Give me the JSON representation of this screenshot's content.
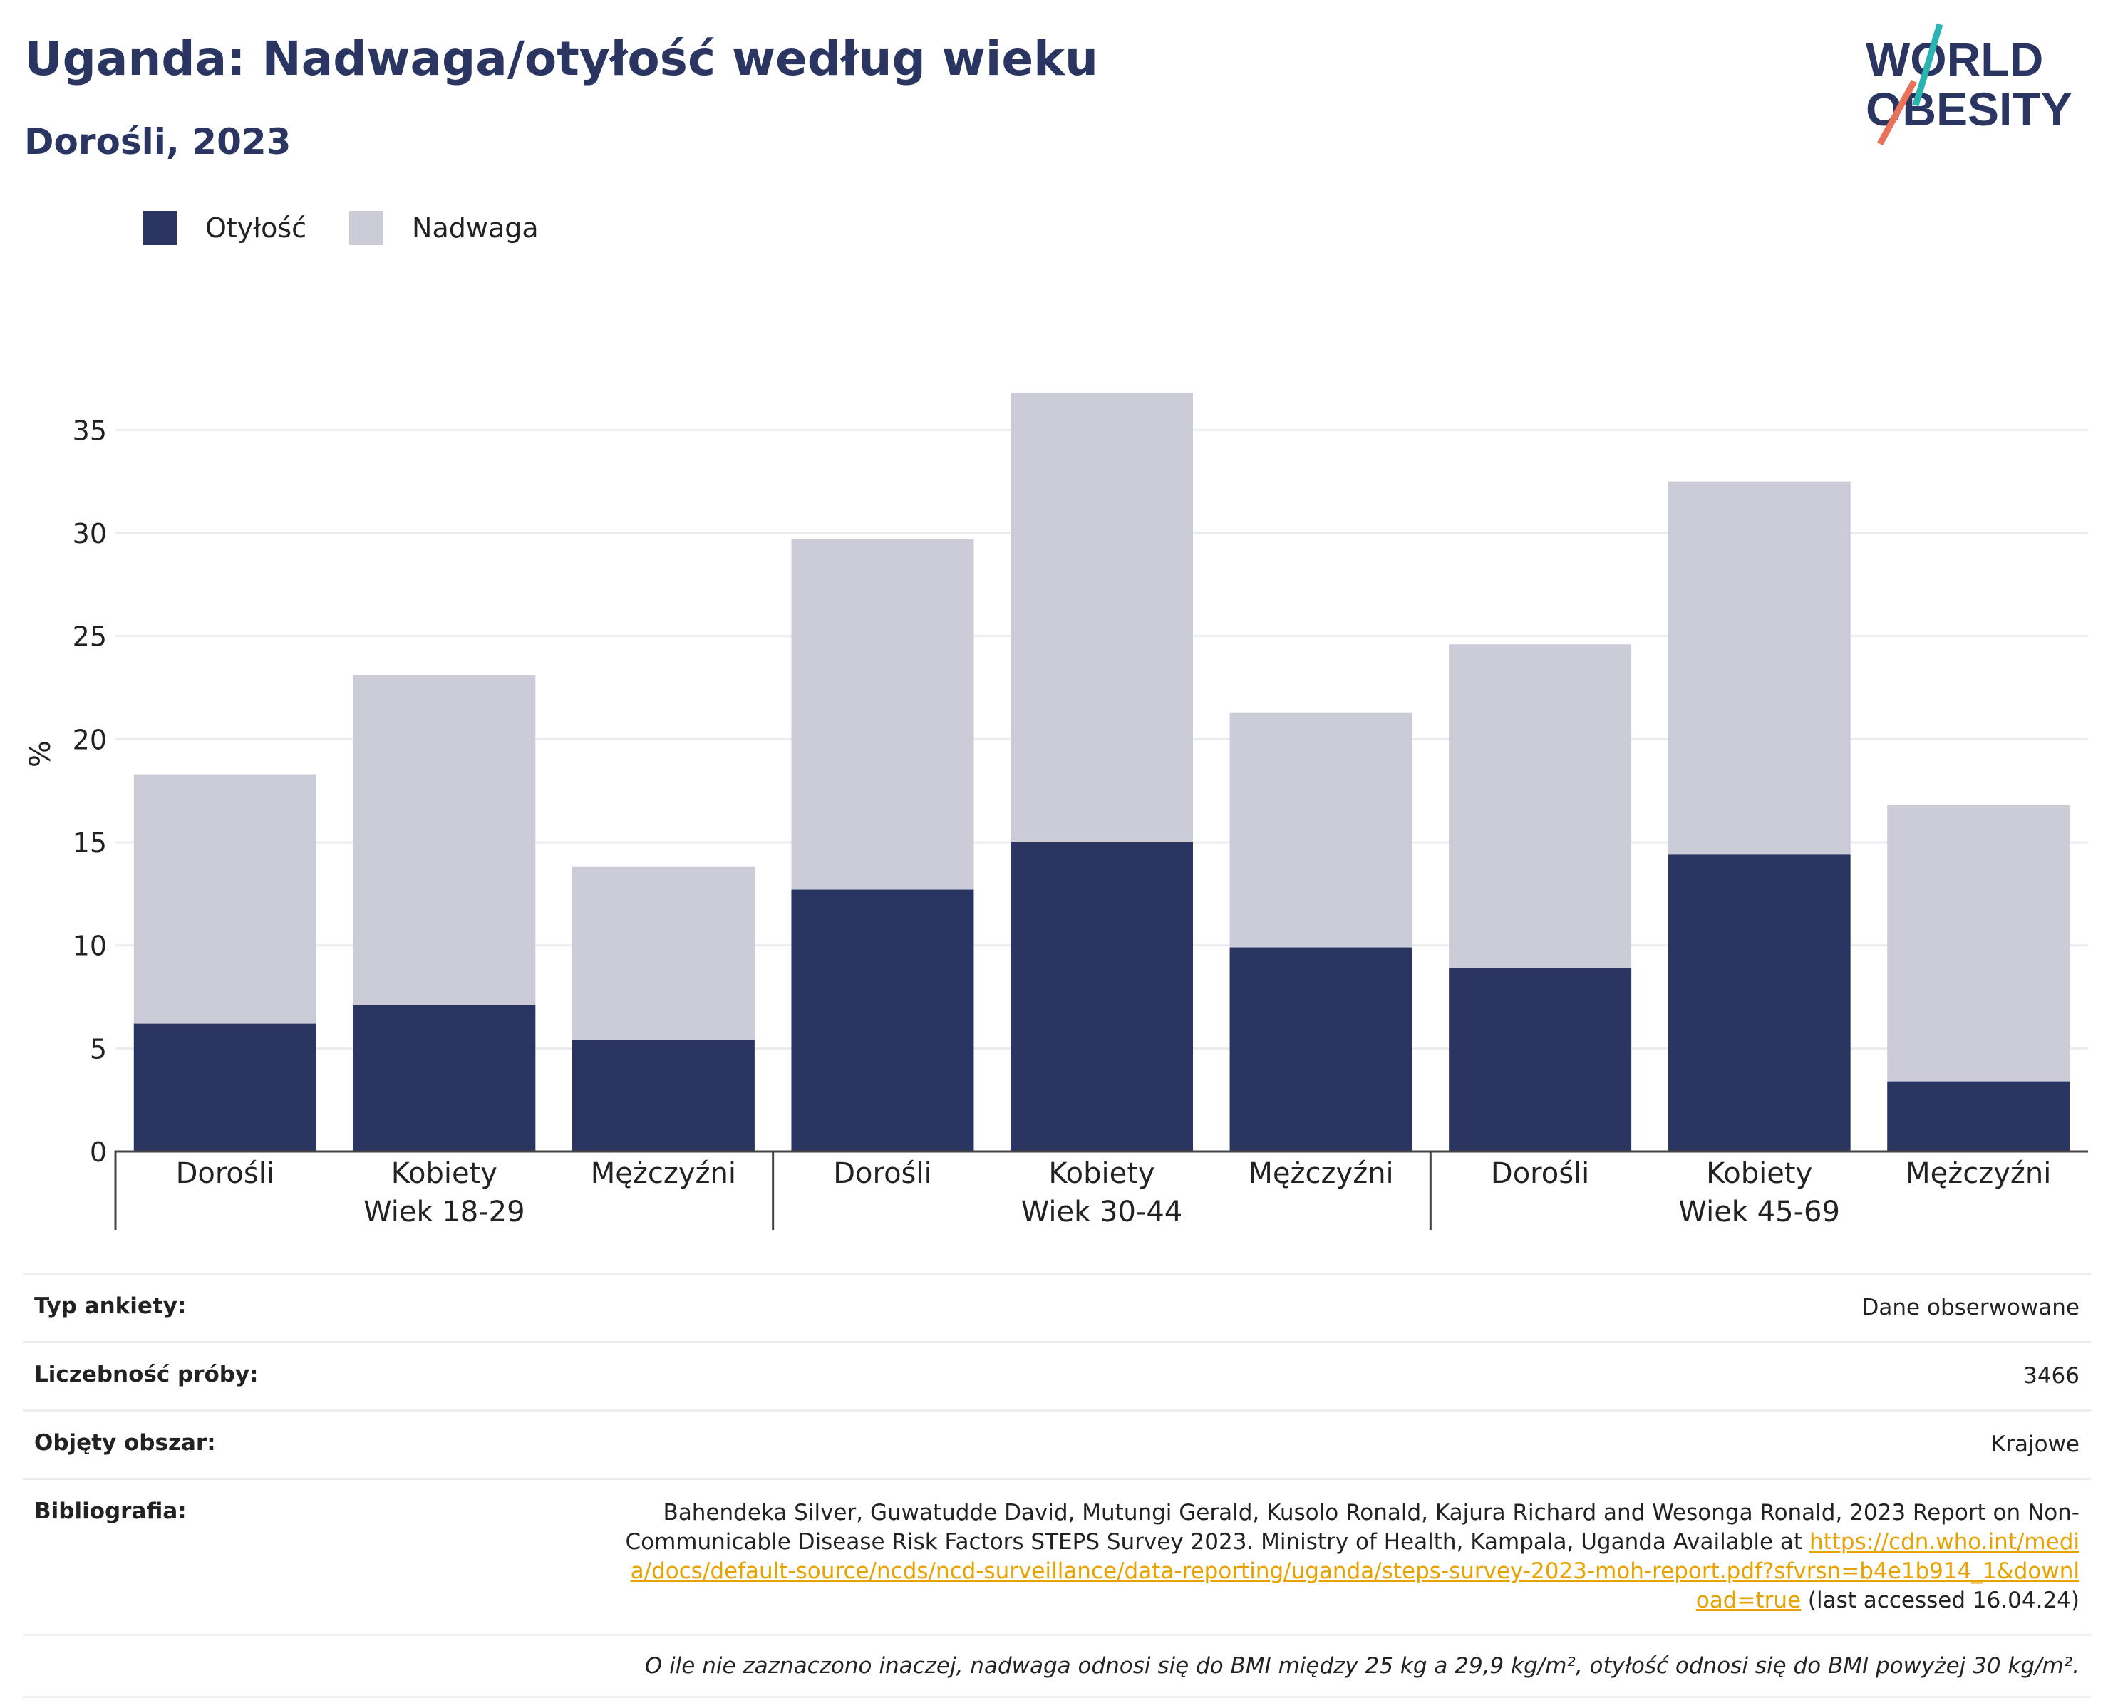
{
  "header": {
    "title": "Uganda: Nadwaga/otyłość według wieku",
    "subtitle": "Dorośli, 2023"
  },
  "logo": {
    "line1": "WORLD",
    "line2": "OBESITY"
  },
  "colors": {
    "obesity": "#2a3561",
    "overweight": "#cbccd7",
    "accent_teal": "#2bb3b1",
    "accent_red": "#e8735a",
    "link": "#e8a200"
  },
  "legend": [
    {
      "label": "Otyłość",
      "color": "#2a3561"
    },
    {
      "label": "Nadwaga",
      "color": "#cbccd7"
    }
  ],
  "chart_data": {
    "type": "bar",
    "stacked": true,
    "ylabel": "%",
    "ylim": [
      0,
      37
    ],
    "yticks": [
      0,
      5,
      10,
      15,
      20,
      25,
      30,
      35
    ],
    "grid": true,
    "legend_position": "top-left",
    "groups": [
      {
        "label": "Wiek 18-29",
        "categories": [
          "Dorośli",
          "Kobiety",
          "Mężczyźni"
        ]
      },
      {
        "label": "Wiek 30-44",
        "categories": [
          "Dorośli",
          "Kobiety",
          "Mężczyźni"
        ]
      },
      {
        "label": "Wiek 45-69",
        "categories": [
          "Dorośli",
          "Kobiety",
          "Mężczyźni"
        ]
      }
    ],
    "series": [
      {
        "name": "Otyłość",
        "values": [
          6.2,
          7.1,
          5.4,
          12.7,
          15.0,
          9.9,
          8.9,
          14.4,
          3.4
        ]
      },
      {
        "name": "Nadwaga",
        "values": [
          12.1,
          16.0,
          8.4,
          17.0,
          21.8,
          11.4,
          15.7,
          18.1,
          13.4
        ]
      }
    ]
  },
  "info": {
    "rows": [
      {
        "key": "Typ ankiety:",
        "value": "Dane obserwowane"
      },
      {
        "key": "Liczebność próby:",
        "value": "3466"
      },
      {
        "key": "Objęty obszar:",
        "value": "Krajowe"
      }
    ],
    "bibliography": {
      "key": "Bibliografia:",
      "text": "Bahendeka Silver, Guwatudde David, Mutungi Gerald, Kusolo Ronald, Kajura Richard and Wesonga Ronald, 2023 Report on Non-Communicable Disease Risk Factors STEPS Survey 2023. Ministry of Health, Kampala, Uganda Available at",
      "link": "https://cdn.who.int/media/docs/default-source/ncds/ncd-surveillance/data-reporting/uganda/steps-survey-2023-moh-report.pdf?sfvrsn=b4e1b914_1&download=true",
      "suffix": "(last accessed 16.04.24)"
    },
    "note": "O ile nie zaznaczono inaczej, nadwaga odnosi się do BMI między 25 kg a 29,9 kg/m², otyłość odnosi się do BMI powyżej 30 kg/m²."
  }
}
